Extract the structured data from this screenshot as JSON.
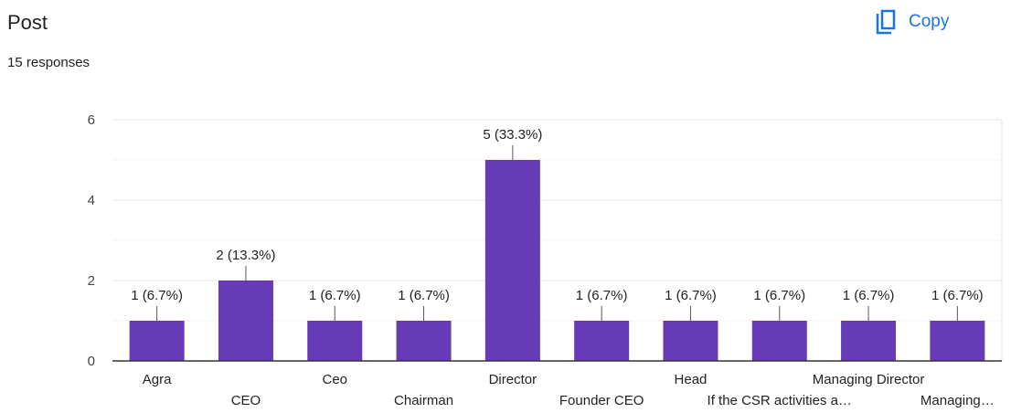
{
  "header": {
    "title": "Post",
    "responses": "15 responses",
    "copy_label": "Copy",
    "copy_icon": "copy-icon"
  },
  "chart_data": {
    "type": "bar",
    "title": "Post",
    "categories": [
      "Agra",
      "CEO",
      "Ceo",
      "Chairman",
      "Director",
      "Founder CEO",
      "Head",
      "If the CSR activities a…",
      "Managing Director",
      "Managing…"
    ],
    "values": [
      1,
      2,
      1,
      1,
      5,
      1,
      1,
      1,
      1,
      1
    ],
    "data_labels": [
      "1 (6.7%)",
      "2 (13.3%)",
      "1 (6.7%)",
      "1 (6.7%)",
      "5 (33.3%)",
      "1 (6.7%)",
      "1 (6.7%)",
      "1 (6.7%)",
      "1 (6.7%)",
      "1 (6.7%)"
    ],
    "yticks": [
      "0",
      "2",
      "4",
      "6"
    ],
    "ylim": [
      0,
      6
    ],
    "xlabel": "",
    "ylabel": "",
    "grid": true,
    "bar_color": "#673ab7"
  }
}
